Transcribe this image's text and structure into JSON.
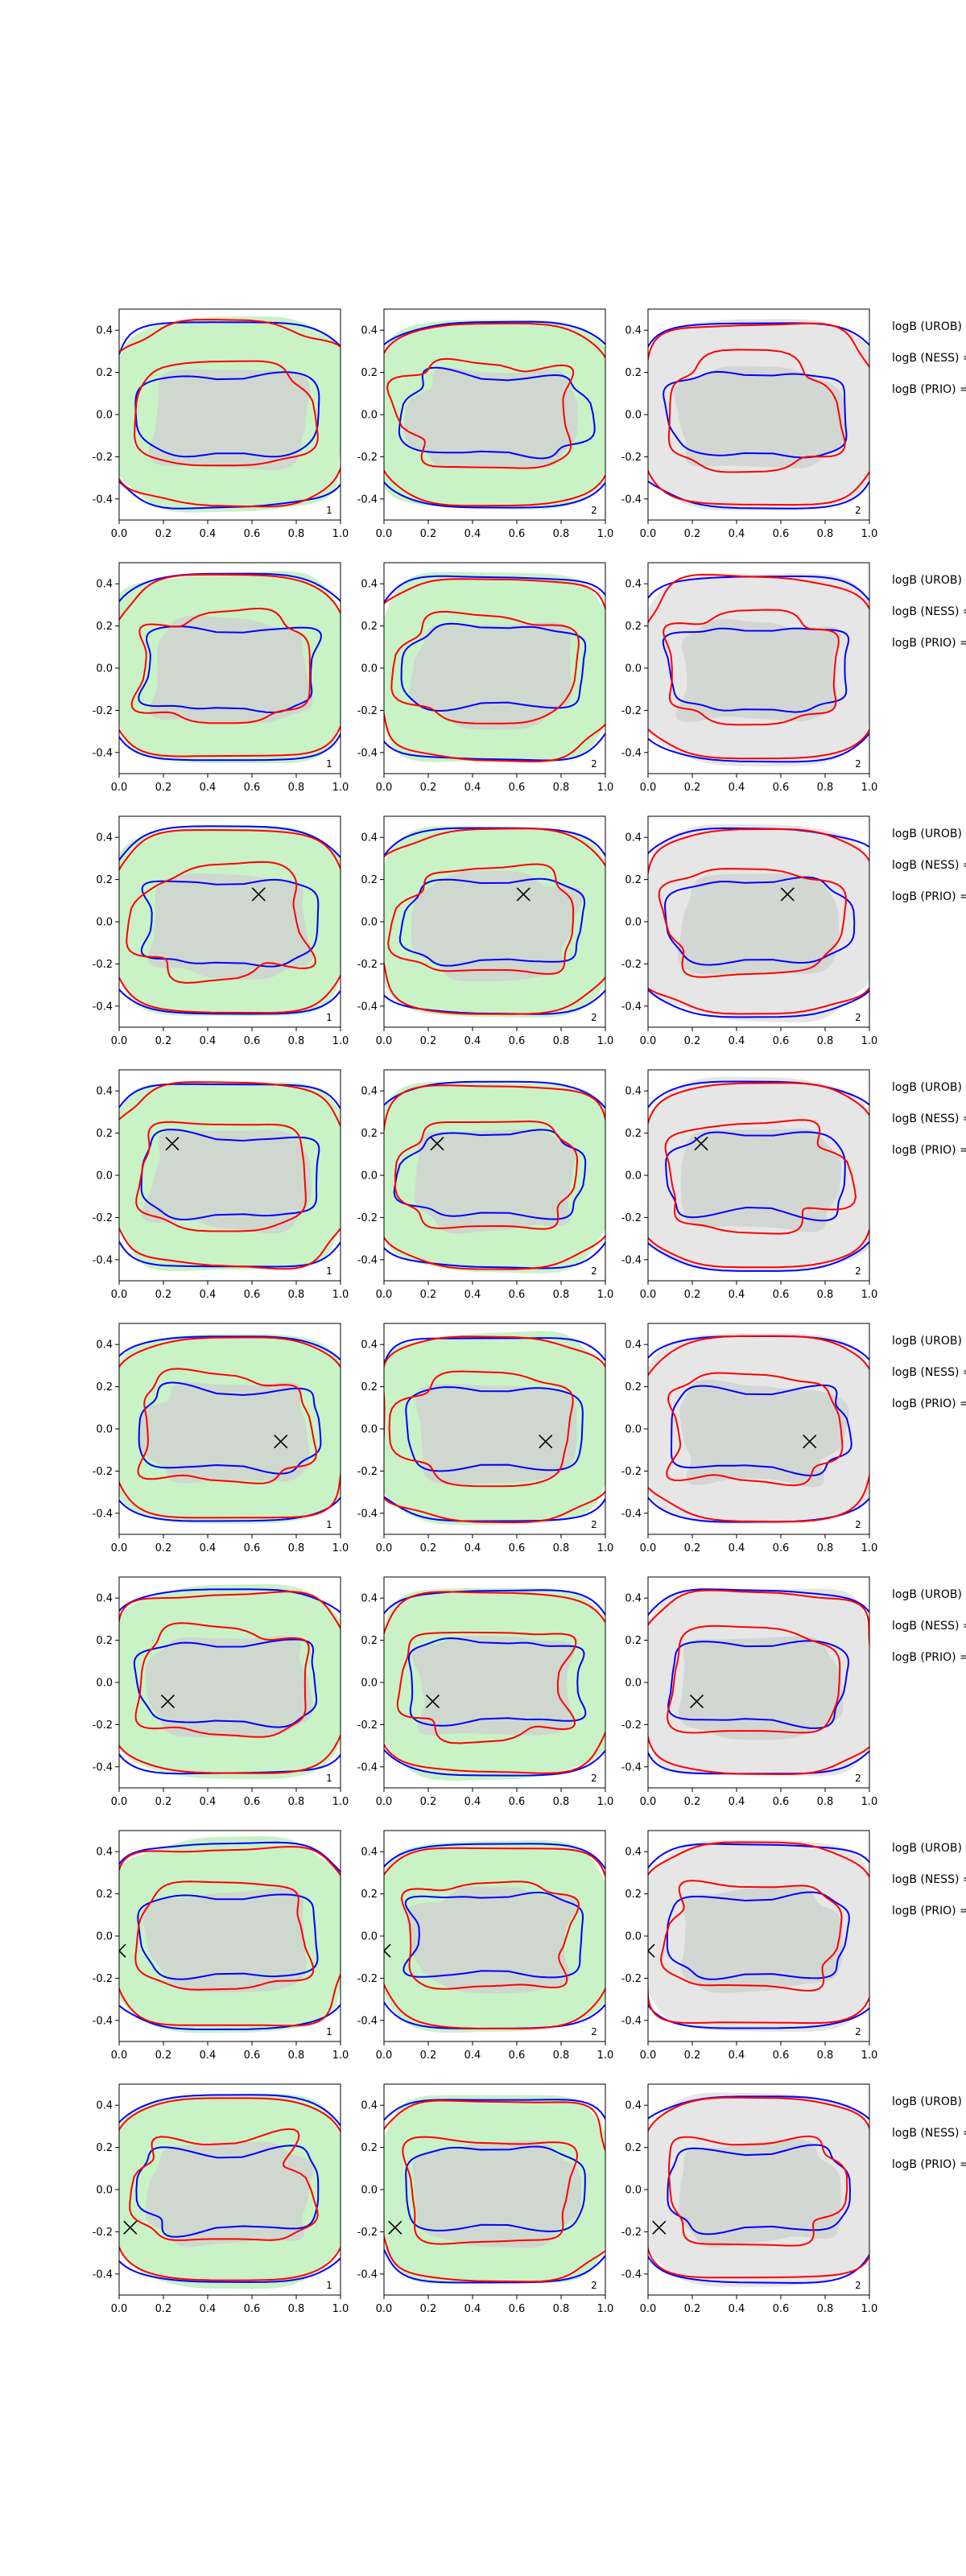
{
  "chart_data": {
    "type": "contour-grid",
    "description_rows": 8,
    "description_cols": 3,
    "xlim": [
      0.0,
      1.0
    ],
    "ylim": [
      -0.5,
      0.5
    ],
    "xticks": [
      "0.0",
      "0.2",
      "0.4",
      "0.6",
      "0.8",
      "1.0"
    ],
    "yticks": [
      "0.4",
      "0.2",
      "0.0",
      "-0.2",
      "-0.4"
    ],
    "ytick_values": [
      0.4,
      0.2,
      0.0,
      -0.2,
      -0.4
    ],
    "xtick_values": [
      0.0,
      0.2,
      0.4,
      0.6,
      0.8,
      1.0
    ],
    "colors": {
      "red": "#ff0000",
      "blue": "#0000ff",
      "green_fill": "#c9f2c6",
      "grey_fill": "#e6e6e6",
      "inner_fill": "#cfd3cf",
      "marker": "#000000"
    },
    "panel_corner_labels": [
      "1",
      "2",
      "2"
    ],
    "side_labels": [
      "logB (UROB) =",
      "logB (NESS) =",
      "logB (PRIO) ="
    ],
    "rows": [
      {
        "marker": null,
        "panels": [
          {
            "label": "1",
            "fill": "green"
          },
          {
            "label": "2",
            "fill": "green"
          },
          {
            "label": "2",
            "fill": "grey"
          }
        ]
      },
      {
        "marker": null,
        "panels": [
          {
            "label": "1",
            "fill": "green"
          },
          {
            "label": "2",
            "fill": "green"
          },
          {
            "label": "2",
            "fill": "grey"
          }
        ]
      },
      {
        "marker": {
          "x": 0.63,
          "y": 0.13
        },
        "panels": [
          {
            "label": "1",
            "fill": "green"
          },
          {
            "label": "2",
            "fill": "green"
          },
          {
            "label": "2",
            "fill": "grey"
          }
        ]
      },
      {
        "marker": {
          "x": 0.24,
          "y": 0.15
        },
        "panels": [
          {
            "label": "1",
            "fill": "green"
          },
          {
            "label": "2",
            "fill": "green"
          },
          {
            "label": "2",
            "fill": "grey"
          }
        ]
      },
      {
        "marker": {
          "x": 0.73,
          "y": -0.06
        },
        "panels": [
          {
            "label": "1",
            "fill": "green"
          },
          {
            "label": "2",
            "fill": "green"
          },
          {
            "label": "2",
            "fill": "grey"
          }
        ]
      },
      {
        "marker": {
          "x": 0.22,
          "y": -0.09
        },
        "panels": [
          {
            "label": "1",
            "fill": "green"
          },
          {
            "label": "2",
            "fill": "green"
          },
          {
            "label": "2",
            "fill": "grey"
          }
        ]
      },
      {
        "marker": {
          "x": 0.0,
          "y": -0.07
        },
        "panels": [
          {
            "label": "1",
            "fill": "green"
          },
          {
            "label": "2",
            "fill": "green"
          },
          {
            "label": "2",
            "fill": "grey"
          }
        ]
      },
      {
        "marker": {
          "x": 0.05,
          "y": -0.18
        },
        "panels": [
          {
            "label": "1",
            "fill": "green"
          },
          {
            "label": "2",
            "fill": "green"
          },
          {
            "label": "2",
            "fill": "grey"
          }
        ]
      }
    ]
  }
}
